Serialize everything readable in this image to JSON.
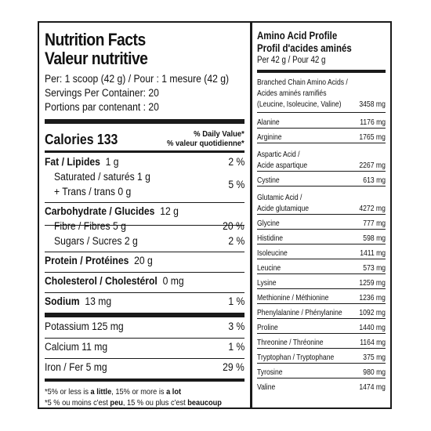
{
  "nutrition": {
    "title_en": "Nutrition Facts",
    "title_fr": "Valeur nutritive",
    "serving": "Per: 1 scoop (42 g) / Pour : 1 mesure (42 g)",
    "servings_per_container": "Servings Per Container: 20",
    "portions": "Portions par contenant : 20",
    "calories": "Calories 133",
    "dv_header_en": "% Daily Value*",
    "dv_header_fr": "% valeur quotidienne*",
    "fat": {
      "label": "Fat / Lipides",
      "amount": "1 g",
      "pct": "2 %"
    },
    "saturated": {
      "label": "Saturated / saturés 1 g"
    },
    "trans": {
      "label": "+ Trans / trans 0 g",
      "pct": "5 %"
    },
    "carbs": {
      "label": "Carbohydrate / Glucides",
      "amount": "12 g"
    },
    "fibre": {
      "label": "Fibre / Fibres 5 g",
      "pct": "20 %"
    },
    "sugars": {
      "label": "Sugars / Sucres 2 g",
      "pct": "2 %"
    },
    "protein": {
      "label": "Protein / Protéines",
      "amount": "20 g"
    },
    "cholesterol": {
      "label": "Cholesterol / Cholestérol",
      "amount": "0 mg"
    },
    "sodium": {
      "label": "Sodium",
      "amount": "13 mg",
      "pct": "1 %"
    },
    "potassium": {
      "label": "Potassium 125 mg",
      "pct": "3 %"
    },
    "calcium": {
      "label": "Calcium 11 mg",
      "pct": "1 %"
    },
    "iron": {
      "label": "Iron / Fer 5 mg",
      "pct": "29 %"
    },
    "footnote_en_a": "*5% or less is ",
    "footnote_en_b": "a little",
    "footnote_en_c": ", 15% or more is ",
    "footnote_en_d": "a lot",
    "footnote_fr_a": "*5 % ou moins c'est ",
    "footnote_fr_b": "peu",
    "footnote_fr_c": ", 15 % ou plus c'est ",
    "footnote_fr_d": "beaucoup"
  },
  "amino": {
    "title_en": "Amino Acid Profile",
    "title_fr": "Profil d'acides aminés",
    "per": "Per 42 g / Pour 42 g",
    "bcaa_line1": "Branched Chain Amino Acids /",
    "bcaa_line2": "Acides aminés ramifiés",
    "bcaa_line3": "(Leucine, Isoleucine, Valine)",
    "bcaa_value": "3458 mg",
    "rows": [
      {
        "name": "Alanine",
        "value": "1176 mg"
      },
      {
        "name": "Arginine",
        "value": "1765 mg"
      },
      {
        "name": "Aspartic Acid /",
        "name2": "Acide aspartique",
        "value": "2267 mg"
      },
      {
        "name": "Cystine",
        "value": "613 mg"
      },
      {
        "name": "Glutamic Acid /",
        "name2": "Acide glutamique",
        "value": "4272 mg"
      },
      {
        "name": "Glycine",
        "value": "777 mg"
      },
      {
        "name": "Histidine",
        "value": "598 mg"
      },
      {
        "name": "Isoleucine",
        "value": "1411 mg"
      },
      {
        "name": "Leucine",
        "value": "573 mg"
      },
      {
        "name": "Lysine",
        "value": "1259 mg"
      },
      {
        "name": "Methionine / Méthionine",
        "value": "1236 mg"
      },
      {
        "name": "Phenylalanine / Phénylanine",
        "value": "1092 mg"
      },
      {
        "name": "Proline",
        "value": "1440 mg"
      },
      {
        "name": "Threonine / Thréonine",
        "value": "1164 mg"
      },
      {
        "name": "Tryptophan / Tryptophane",
        "value": "375 mg"
      },
      {
        "name": "Tyrosine",
        "value": "980 mg"
      },
      {
        "name": "Valine",
        "value": "1474 mg"
      }
    ]
  }
}
